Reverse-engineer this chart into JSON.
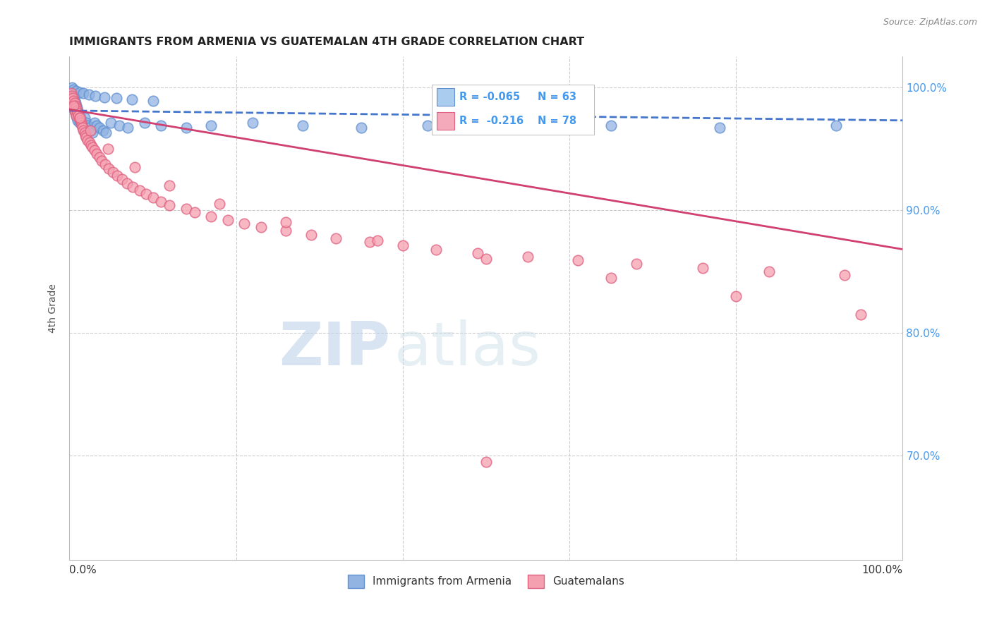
{
  "title": "IMMIGRANTS FROM ARMENIA VS GUATEMALAN 4TH GRADE CORRELATION CHART",
  "source": "Source: ZipAtlas.com",
  "ylabel": "4th Grade",
  "ytick_labels": [
    "100.0%",
    "90.0%",
    "80.0%",
    "70.0%"
  ],
  "ytick_positions": [
    1.0,
    0.9,
    0.8,
    0.7
  ],
  "xlim": [
    0.0,
    1.0
  ],
  "ylim": [
    0.615,
    1.025
  ],
  "color_blue": "#92b4e3",
  "color_blue_edge": "#6090d0",
  "color_blue_line": "#4477cc",
  "color_pink": "#f5a0b0",
  "color_pink_edge": "#e06080",
  "color_pink_line": "#d04070",
  "color_ytick": "#4499ee",
  "watermark_color": "#c8ddf0",
  "watermark_zip": "ZIP",
  "watermark_atlas": "atlas",
  "legend_box_blue": "#aaccee",
  "legend_box_pink": "#f5aabc",
  "armenia_x": [
    0.002,
    0.003,
    0.003,
    0.004,
    0.004,
    0.005,
    0.005,
    0.006,
    0.006,
    0.007,
    0.007,
    0.008,
    0.008,
    0.009,
    0.009,
    0.01,
    0.01,
    0.011,
    0.012,
    0.012,
    0.013,
    0.014,
    0.015,
    0.016,
    0.017,
    0.018,
    0.019,
    0.02,
    0.022,
    0.024,
    0.026,
    0.028,
    0.03,
    0.033,
    0.036,
    0.04,
    0.044,
    0.05,
    0.06,
    0.07,
    0.09,
    0.11,
    0.14,
    0.17,
    0.22,
    0.28,
    0.35,
    0.43,
    0.53,
    0.65,
    0.78,
    0.92,
    0.003,
    0.005,
    0.008,
    0.012,
    0.017,
    0.023,
    0.031,
    0.042,
    0.056,
    0.075,
    0.1
  ],
  "armenia_y": [
    0.99,
    0.995,
    0.988,
    0.993,
    0.985,
    0.991,
    0.983,
    0.989,
    0.981,
    0.987,
    0.979,
    0.985,
    0.977,
    0.983,
    0.975,
    0.981,
    0.973,
    0.979,
    0.977,
    0.971,
    0.975,
    0.973,
    0.971,
    0.969,
    0.967,
    0.975,
    0.963,
    0.971,
    0.969,
    0.967,
    0.965,
    0.963,
    0.971,
    0.969,
    0.967,
    0.965,
    0.963,
    0.971,
    0.969,
    0.967,
    0.971,
    0.969,
    0.967,
    0.969,
    0.971,
    0.969,
    0.967,
    0.969,
    0.971,
    0.969,
    0.967,
    0.969,
    1.0,
    0.998,
    0.997,
    0.996,
    0.995,
    0.994,
    0.993,
    0.992,
    0.991,
    0.99,
    0.989
  ],
  "guatemalan_x": [
    0.002,
    0.003,
    0.003,
    0.004,
    0.004,
    0.005,
    0.005,
    0.006,
    0.006,
    0.007,
    0.007,
    0.008,
    0.008,
    0.009,
    0.01,
    0.011,
    0.012,
    0.013,
    0.014,
    0.015,
    0.016,
    0.017,
    0.018,
    0.019,
    0.02,
    0.022,
    0.024,
    0.026,
    0.028,
    0.03,
    0.033,
    0.036,
    0.039,
    0.043,
    0.047,
    0.052,
    0.057,
    0.063,
    0.069,
    0.076,
    0.084,
    0.092,
    0.1,
    0.11,
    0.12,
    0.14,
    0.15,
    0.17,
    0.19,
    0.21,
    0.23,
    0.26,
    0.29,
    0.32,
    0.36,
    0.4,
    0.44,
    0.49,
    0.55,
    0.61,
    0.68,
    0.76,
    0.84,
    0.93,
    0.005,
    0.012,
    0.025,
    0.046,
    0.078,
    0.12,
    0.18,
    0.26,
    0.37,
    0.5,
    0.65,
    0.8,
    0.95,
    0.5
  ],
  "guatemalan_y": [
    0.995,
    0.993,
    0.987,
    0.991,
    0.985,
    0.989,
    0.983,
    0.987,
    0.981,
    0.985,
    0.979,
    0.983,
    0.977,
    0.981,
    0.979,
    0.977,
    0.975,
    0.973,
    0.971,
    0.969,
    0.967,
    0.965,
    0.963,
    0.961,
    0.959,
    0.957,
    0.955,
    0.953,
    0.951,
    0.949,
    0.946,
    0.943,
    0.94,
    0.937,
    0.934,
    0.931,
    0.928,
    0.925,
    0.922,
    0.919,
    0.916,
    0.913,
    0.91,
    0.907,
    0.904,
    0.901,
    0.898,
    0.895,
    0.892,
    0.889,
    0.886,
    0.883,
    0.88,
    0.877,
    0.874,
    0.871,
    0.868,
    0.865,
    0.862,
    0.859,
    0.856,
    0.853,
    0.85,
    0.847,
    0.985,
    0.975,
    0.965,
    0.95,
    0.935,
    0.92,
    0.905,
    0.89,
    0.875,
    0.86,
    0.845,
    0.83,
    0.815,
    0.695
  ]
}
